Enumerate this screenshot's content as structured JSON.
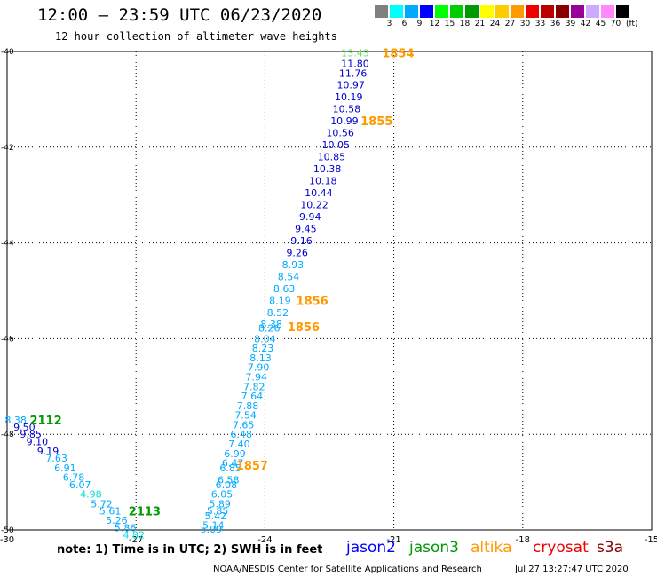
{
  "header": {
    "title": "12:00 – 23:59 UTC 06/23/2020",
    "subtitle": "12 hour collection of altimeter wave heights"
  },
  "legend": {
    "unit": "(ft)",
    "bins": [
      {
        "label": "3",
        "color": "#808080"
      },
      {
        "label": "6",
        "color": "#00ffff"
      },
      {
        "label": "9",
        "color": "#00aaff"
      },
      {
        "label": "12",
        "color": "#0000ff"
      },
      {
        "label": "15",
        "color": "#00ff00"
      },
      {
        "label": "18",
        "color": "#00cc00"
      },
      {
        "label": "21",
        "color": "#009900"
      },
      {
        "label": "24",
        "color": "#ffff00"
      },
      {
        "label": "27",
        "color": "#ffcc00"
      },
      {
        "label": "30",
        "color": "#ff9900"
      },
      {
        "label": "33",
        "color": "#ee0000"
      },
      {
        "label": "36",
        "color": "#bb0000"
      },
      {
        "label": "39",
        "color": "#880000"
      },
      {
        "label": "42",
        "color": "#990099"
      },
      {
        "label": "45",
        "color": "#ccaaff"
      },
      {
        "label": "70",
        "color": "#ff88ff"
      },
      {
        "label": "",
        "color": "#000000"
      }
    ]
  },
  "axes": {
    "lon_ticks": [
      "-30",
      "-27",
      "-24",
      "-21",
      "-18",
      "-15"
    ],
    "lat_ticks": [
      "-40",
      "-42",
      "-44",
      "-46",
      "-48",
      "-50"
    ]
  },
  "tracks": [
    {
      "id": "t1854",
      "time": "1854",
      "time_color": "#ff9900",
      "time_lon": -20.9,
      "time_lat": -40.03,
      "points": [
        {
          "lon": -21.9,
          "lat": -40.03,
          "v": "13.43",
          "c": "#66dd66"
        },
        {
          "lon": -21.9,
          "lat": -40.25,
          "v": "11.80",
          "c": "#0000cc"
        },
        {
          "lon": -21.95,
          "lat": -40.45,
          "v": "11.76",
          "c": "#0000cc"
        },
        {
          "lon": -22.0,
          "lat": -40.7,
          "v": "10.97",
          "c": "#0000cc"
        },
        {
          "lon": -22.05,
          "lat": -40.95,
          "v": "10.19",
          "c": "#0000cc"
        },
        {
          "lon": -22.1,
          "lat": -41.2,
          "v": "10.58",
          "c": "#0000cc"
        }
      ]
    },
    {
      "id": "t1855",
      "time": "1855",
      "time_color": "#ff9900",
      "time_lon": -21.4,
      "time_lat": -41.45,
      "points": [
        {
          "lon": -22.15,
          "lat": -41.45,
          "v": "10.99",
          "c": "#0000cc"
        },
        {
          "lon": -22.25,
          "lat": -41.7,
          "v": "10.56",
          "c": "#0000cc"
        },
        {
          "lon": -22.35,
          "lat": -41.95,
          "v": "10.05",
          "c": "#0000cc"
        },
        {
          "lon": -22.45,
          "lat": -42.2,
          "v": "10.85",
          "c": "#0000cc"
        },
        {
          "lon": -22.55,
          "lat": -42.45,
          "v": "10.38",
          "c": "#0000cc"
        },
        {
          "lon": -22.65,
          "lat": -42.7,
          "v": "10.18",
          "c": "#0000cc"
        },
        {
          "lon": -22.75,
          "lat": -42.95,
          "v": "10.44",
          "c": "#0000cc"
        },
        {
          "lon": -22.85,
          "lat": -43.2,
          "v": "10.22",
          "c": "#0000cc"
        },
        {
          "lon": -22.95,
          "lat": -43.45,
          "v": "9.94",
          "c": "#0000cc"
        },
        {
          "lon": -23.05,
          "lat": -43.7,
          "v": "9.45",
          "c": "#0000cc"
        },
        {
          "lon": -23.15,
          "lat": -43.95,
          "v": "9.16",
          "c": "#0000cc"
        },
        {
          "lon": -23.25,
          "lat": -44.2,
          "v": "9.26",
          "c": "#0000cc"
        },
        {
          "lon": -23.35,
          "lat": -44.45,
          "v": "8.93",
          "c": "#00aaff"
        },
        {
          "lon": -23.45,
          "lat": -44.7,
          "v": "8.54",
          "c": "#00aaff"
        },
        {
          "lon": -23.55,
          "lat": -44.95,
          "v": "8.63",
          "c": "#00aaff"
        }
      ]
    },
    {
      "id": "t1856a",
      "time": "1856",
      "time_color": "#ff9900",
      "time_lon": -22.9,
      "time_lat": -45.2,
      "points": [
        {
          "lon": -23.65,
          "lat": -45.2,
          "v": "8.19",
          "c": "#00aaff"
        },
        {
          "lon": -23.7,
          "lat": -45.45,
          "v": "8.52",
          "c": "#00aaff"
        },
        {
          "lon": -23.85,
          "lat": -45.7,
          "v": "8.38",
          "c": "#00aaff"
        }
      ]
    },
    {
      "id": "t1856b",
      "time": "1856",
      "time_color": "#ff9900",
      "time_lon": -23.1,
      "time_lat": -45.75,
      "points": [
        {
          "lon": -23.9,
          "lat": -45.78,
          "v": "8.26",
          "c": "#00aaff"
        },
        {
          "lon": -24.0,
          "lat": -46.0,
          "v": "8.04",
          "c": "#00aaff"
        },
        {
          "lon": -24.05,
          "lat": -46.2,
          "v": "8.23",
          "c": "#00aaff"
        },
        {
          "lon": -24.1,
          "lat": -46.4,
          "v": "8.13",
          "c": "#00aaff"
        },
        {
          "lon": -24.15,
          "lat": -46.6,
          "v": "7.90",
          "c": "#00aaff"
        },
        {
          "lon": -24.2,
          "lat": -46.8,
          "v": "7.94",
          "c": "#00aaff"
        },
        {
          "lon": -24.25,
          "lat": -47.0,
          "v": "7.82",
          "c": "#00aaff"
        },
        {
          "lon": -24.3,
          "lat": -47.2,
          "v": "7.64",
          "c": "#00aaff"
        },
        {
          "lon": -24.4,
          "lat": -47.4,
          "v": "7.88",
          "c": "#00aaff"
        },
        {
          "lon": -24.45,
          "lat": -47.6,
          "v": "7.54",
          "c": "#00aaff"
        },
        {
          "lon": -24.5,
          "lat": -47.8,
          "v": "7.65",
          "c": "#00aaff"
        },
        {
          "lon": -24.55,
          "lat": -48.0,
          "v": "6.48",
          "c": "#00aaff"
        },
        {
          "lon": -24.6,
          "lat": -48.2,
          "v": "7.40",
          "c": "#00aaff"
        },
        {
          "lon": -24.7,
          "lat": -48.4,
          "v": "6.99",
          "c": "#00aaff"
        },
        {
          "lon": -24.75,
          "lat": -48.6,
          "v": "6.47",
          "c": "#00aaff"
        },
        {
          "lon": -24.8,
          "lat": -48.7,
          "v": "6.85",
          "c": "#00aaff"
        }
      ]
    },
    {
      "id": "t1857",
      "time": "1857",
      "time_color": "#ff9900",
      "time_lon": -24.3,
      "time_lat": -48.65,
      "points": [
        {
          "lon": -24.85,
          "lat": -48.95,
          "v": "6.58",
          "c": "#00aaff"
        },
        {
          "lon": -24.9,
          "lat": -49.05,
          "v": "6.08",
          "c": "#00aaff"
        },
        {
          "lon": -25.0,
          "lat": -49.25,
          "v": "6.05",
          "c": "#00aaff"
        },
        {
          "lon": -25.05,
          "lat": -49.45,
          "v": "5.89",
          "c": "#00aaff"
        },
        {
          "lon": -25.1,
          "lat": -49.6,
          "v": "5.85",
          "c": "#00aaff"
        },
        {
          "lon": -25.15,
          "lat": -49.7,
          "v": "5.42",
          "c": "#00aaff"
        },
        {
          "lon": -25.2,
          "lat": -49.9,
          "v": "5.14",
          "c": "#00aaff"
        },
        {
          "lon": -25.25,
          "lat": -49.98,
          "v": "5.09",
          "c": "#00aaff"
        }
      ]
    },
    {
      "id": "t2112",
      "time": "2112",
      "time_color": "#009900",
      "time_lon": -29.1,
      "time_lat": -47.7,
      "points": [
        {
          "lon": -29.8,
          "lat": -47.7,
          "v": "8.38",
          "c": "#00aaff"
        },
        {
          "lon": -29.6,
          "lat": -47.85,
          "v": "9.50",
          "c": "#0000cc"
        },
        {
          "lon": -29.45,
          "lat": -48.0,
          "v": "9.85",
          "c": "#0000cc"
        },
        {
          "lon": -29.3,
          "lat": -48.15,
          "v": "9.10",
          "c": "#0000cc"
        },
        {
          "lon": -29.05,
          "lat": -48.35,
          "v": "9.19",
          "c": "#0000cc"
        },
        {
          "lon": -28.85,
          "lat": -48.5,
          "v": "7.63",
          "c": "#00aaff"
        },
        {
          "lon": -28.65,
          "lat": -48.7,
          "v": "6.91",
          "c": "#00aaff"
        },
        {
          "lon": -28.45,
          "lat": -48.9,
          "v": "6.78",
          "c": "#00aaff"
        },
        {
          "lon": -28.3,
          "lat": -49.05,
          "v": "6.07",
          "c": "#00aaff"
        },
        {
          "lon": -28.05,
          "lat": -49.25,
          "v": "4.98",
          "c": "#00dddd"
        },
        {
          "lon": -27.8,
          "lat": -49.45,
          "v": "5.72",
          "c": "#00aaff"
        }
      ]
    },
    {
      "id": "t2113",
      "time": "2113",
      "time_color": "#009900",
      "time_lon": -26.8,
      "time_lat": -49.6,
      "points": [
        {
          "lon": -27.6,
          "lat": -49.6,
          "v": "5.61",
          "c": "#00aaff"
        },
        {
          "lon": -27.45,
          "lat": -49.8,
          "v": "5.26",
          "c": "#00aaff"
        },
        {
          "lon": -27.25,
          "lat": -49.95,
          "v": "5.86",
          "c": "#00aaff"
        },
        {
          "lon": -27.05,
          "lat": -50.1,
          "v": "4.82",
          "c": "#00dddd"
        }
      ]
    }
  ],
  "footer": {
    "note": "note:  1) Time is in UTC;  2) SWH is in feet",
    "satellites": [
      {
        "name": "jason2",
        "color": "#0000ff"
      },
      {
        "name": "jason3",
        "color": "#009900"
      },
      {
        "name": "altika",
        "color": "#ff9900"
      },
      {
        "name": "cryosat",
        "color": "#ee0000"
      },
      {
        "name": "s3a",
        "color": "#880000"
      }
    ],
    "credit": "NOAA/NESDIS Center for Satellite Applications and Research",
    "timestamp": "Jul 27 13:27:47 UTC 2020"
  }
}
